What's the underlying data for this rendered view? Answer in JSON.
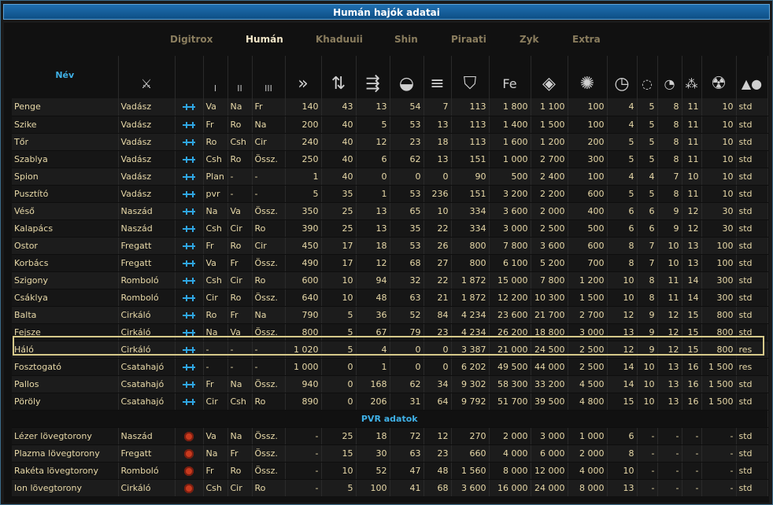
{
  "window": {
    "title": "Humán hajók adatai"
  },
  "tabs": [
    "Digitrox",
    "Humán",
    "Khaduuii",
    "Shin",
    "Piraati",
    "Zyk",
    "Extra"
  ],
  "active_tab": "Humán",
  "header": {
    "name": "Név",
    "weapon_cols": [
      "I",
      "II",
      "III"
    ]
  },
  "rows": [
    [
      "Penge",
      "Vadász",
      "Va",
      "Na",
      "Fr",
      "140",
      "43",
      "13",
      "54",
      "7",
      "113",
      "1 800",
      "1 100",
      "100",
      "4",
      "5",
      "8",
      "11",
      "10",
      "std"
    ],
    [
      "Szike",
      "Vadász",
      "Fr",
      "Ro",
      "Na",
      "200",
      "40",
      "5",
      "53",
      "13",
      "113",
      "1 400",
      "1 500",
      "100",
      "4",
      "5",
      "8",
      "11",
      "10",
      "std"
    ],
    [
      "Tőr",
      "Vadász",
      "Ro",
      "Csh",
      "Cir",
      "240",
      "40",
      "12",
      "23",
      "18",
      "113",
      "1 600",
      "1 200",
      "200",
      "5",
      "5",
      "8",
      "11",
      "10",
      "std"
    ],
    [
      "Szablya",
      "Vadász",
      "Csh",
      "Ro",
      "Össz.",
      "250",
      "40",
      "6",
      "62",
      "13",
      "151",
      "1 000",
      "2 700",
      "300",
      "5",
      "5",
      "8",
      "11",
      "10",
      "std"
    ],
    [
      "Spion",
      "Vadász",
      "Plan",
      "-",
      "-",
      "1",
      "40",
      "0",
      "0",
      "0",
      "90",
      "500",
      "2 400",
      "100",
      "4",
      "4",
      "7",
      "10",
      "10",
      "std"
    ],
    [
      "Pusztító",
      "Vadász",
      "pvr",
      "-",
      "-",
      "5",
      "35",
      "1",
      "53",
      "236",
      "151",
      "3 200",
      "2 200",
      "600",
      "5",
      "5",
      "8",
      "11",
      "10",
      "std"
    ],
    [
      "Véső",
      "Naszád",
      "Na",
      "Va",
      "Össz.",
      "350",
      "25",
      "13",
      "65",
      "10",
      "334",
      "3 600",
      "2 000",
      "400",
      "6",
      "6",
      "9",
      "12",
      "30",
      "std"
    ],
    [
      "Kalapács",
      "Naszád",
      "Csh",
      "Cir",
      "Ro",
      "390",
      "25",
      "13",
      "35",
      "22",
      "334",
      "3 000",
      "2 500",
      "500",
      "6",
      "6",
      "9",
      "12",
      "30",
      "std"
    ],
    [
      "Ostor",
      "Fregatt",
      "Fr",
      "Ro",
      "Cir",
      "450",
      "17",
      "18",
      "53",
      "26",
      "800",
      "7 800",
      "3 600",
      "600",
      "8",
      "7",
      "10",
      "13",
      "100",
      "std"
    ],
    [
      "Korbács",
      "Fregatt",
      "Va",
      "Fr",
      "Össz.",
      "490",
      "17",
      "12",
      "68",
      "27",
      "800",
      "6 100",
      "5 200",
      "700",
      "8",
      "7",
      "10",
      "13",
      "100",
      "std"
    ],
    [
      "Szigony",
      "Romboló",
      "Csh",
      "Cir",
      "Ro",
      "600",
      "10",
      "94",
      "32",
      "22",
      "1 872",
      "15 000",
      "7 800",
      "1 200",
      "10",
      "8",
      "11",
      "14",
      "300",
      "std"
    ],
    [
      "Csáklya",
      "Romboló",
      "Cir",
      "Ro",
      "Össz.",
      "640",
      "10",
      "48",
      "63",
      "21",
      "1 872",
      "12 200",
      "10 300",
      "1 500",
      "10",
      "8",
      "11",
      "14",
      "300",
      "std"
    ],
    [
      "Balta",
      "Cirkáló",
      "Ro",
      "Fr",
      "Na",
      "790",
      "5",
      "36",
      "52",
      "84",
      "4 234",
      "23 600",
      "21 700",
      "2 700",
      "12",
      "9",
      "12",
      "15",
      "800",
      "std"
    ],
    [
      "Fejsze",
      "Cirkáló",
      "Na",
      "Va",
      "Össz.",
      "800",
      "5",
      "67",
      "79",
      "23",
      "4 234",
      "26 200",
      "18 800",
      "3 000",
      "13",
      "9",
      "12",
      "15",
      "800",
      "std"
    ],
    [
      "Háló",
      "Cirkáló",
      "-",
      "-",
      "-",
      "1 020",
      "5",
      "4",
      "0",
      "0",
      "3 387",
      "21 000",
      "24 500",
      "2 500",
      "12",
      "9",
      "12",
      "15",
      "800",
      "res"
    ],
    [
      "Fosztogató",
      "Csatahajó",
      "-",
      "-",
      "-",
      "1 000",
      "0",
      "1",
      "0",
      "0",
      "6 202",
      "49 500",
      "44 000",
      "2 500",
      "14",
      "10",
      "13",
      "16",
      "1 500",
      "res"
    ],
    [
      "Pallos",
      "Csatahajó",
      "Fr",
      "Na",
      "Össz.",
      "940",
      "0",
      "168",
      "62",
      "34",
      "9 302",
      "58 300",
      "33 200",
      "4 500",
      "14",
      "10",
      "13",
      "16",
      "1 500",
      "std"
    ],
    [
      "Pöröly",
      "Csatahajó",
      "Cir",
      "Csh",
      "Ro",
      "890",
      "0",
      "206",
      "31",
      "64",
      "9 792",
      "51 700",
      "39 500",
      "4 800",
      "15",
      "10",
      "13",
      "16",
      "1 500",
      "std"
    ]
  ],
  "pvr_title": "PVR adatok",
  "pvr_rows": [
    [
      "Lézer lövegtorony",
      "Naszád",
      "Va",
      "Na",
      "Össz.",
      "-",
      "25",
      "18",
      "72",
      "12",
      "270",
      "2 000",
      "3 000",
      "1 000",
      "6",
      "-",
      "-",
      "-",
      "-",
      "std"
    ],
    [
      "Plazma lövegtorony",
      "Fregatt",
      "Na",
      "Fr",
      "Össz.",
      "-",
      "15",
      "30",
      "63",
      "23",
      "660",
      "4 000",
      "6 000",
      "2 000",
      "8",
      "-",
      "-",
      "-",
      "-",
      "std"
    ],
    [
      "Rakéta lövegtorony",
      "Romboló",
      "Fr",
      "Ro",
      "Össz.",
      "-",
      "10",
      "52",
      "47",
      "48",
      "1 560",
      "8 000",
      "12 000",
      "4 000",
      "10",
      "-",
      "-",
      "-",
      "-",
      "std"
    ],
    [
      "Ion lövegtorony",
      "Cirkáló",
      "Csh",
      "Cir",
      "Ro",
      "-",
      "5",
      "100",
      "41",
      "68",
      "3 600",
      "16 000",
      "24 000",
      "8 000",
      "13",
      "-",
      "-",
      "-",
      "-",
      "std"
    ]
  ],
  "colors": {
    "accent": "#3fb0e6",
    "text": "#e8d9a8",
    "title_bar": "#1f6fb0"
  },
  "icons": [
    "ship-type-icon",
    "weapon-target-icon",
    "speed-icon",
    "maneuver-icon",
    "weapon-icon",
    "planet-icon",
    "bars-icon",
    "shield-icon",
    "iron-icon",
    "crystal-icon",
    "molecule-icon",
    "timer-icon",
    "clock-icon",
    "radiation-icon",
    "shapes-icon"
  ]
}
